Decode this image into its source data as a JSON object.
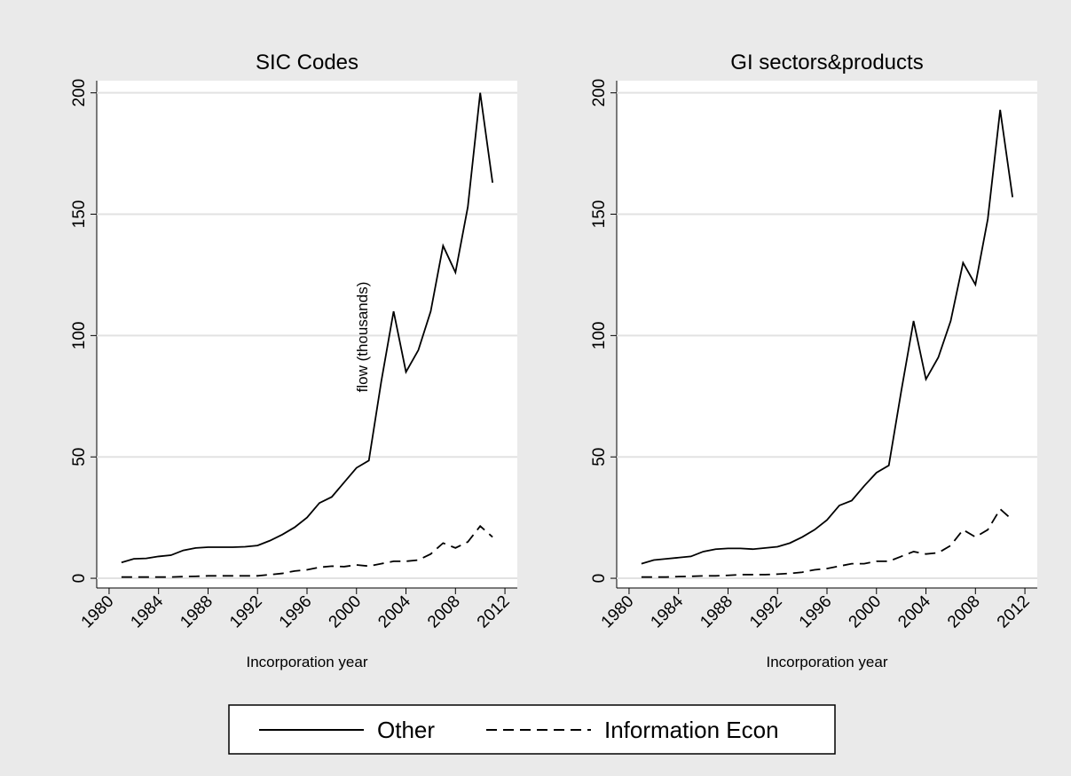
{
  "chart_data": [
    {
      "type": "line",
      "title": "SIC Codes",
      "xlabel": "Incorporation year",
      "ylabel": "flow (thousands)",
      "x": [
        1981,
        1982,
        1983,
        1984,
        1985,
        1986,
        1987,
        1988,
        1989,
        1990,
        1991,
        1992,
        1993,
        1994,
        1995,
        1996,
        1997,
        1998,
        1999,
        2000,
        2001,
        2002,
        2003,
        2004,
        2005,
        2006,
        2007,
        2008,
        2009,
        2010,
        2011
      ],
      "series": [
        {
          "name": "Other",
          "color": "#000000",
          "line_style": "solid",
          "values": [
            6.5,
            8,
            8.2,
            9,
            9.5,
            11.5,
            12.5,
            12.8,
            12.8,
            12.8,
            13,
            13.5,
            15.5,
            18,
            21,
            25,
            31,
            33.5,
            39.5,
            45.5,
            48.5,
            81,
            110,
            85,
            94,
            110,
            137,
            126,
            153,
            200,
            163
          ]
        },
        {
          "name": "Information Econ",
          "color": "#000000",
          "line_style": "dashed",
          "values": [
            0.5,
            0.5,
            0.5,
            0.5,
            0.5,
            0.7,
            0.8,
            1,
            1,
            1,
            1,
            1,
            1.5,
            2,
            3,
            3.5,
            4.5,
            5,
            4.8,
            5.5,
            5,
            6,
            7,
            7,
            7.5,
            10,
            14.5,
            12.5,
            15,
            21.5,
            17
          ]
        }
      ],
      "xlim": [
        1979,
        2013
      ],
      "xticks": [
        1980,
        1984,
        1988,
        1992,
        1996,
        2000,
        2004,
        2008,
        2012
      ],
      "ylim": [
        -4,
        205
      ],
      "yticks": [
        0,
        50,
        100,
        150,
        200
      ],
      "grid": true
    },
    {
      "type": "line",
      "title": "GI sectors&products",
      "xlabel": "Incorporation year",
      "x": [
        1981,
        1982,
        1983,
        1984,
        1985,
        1986,
        1987,
        1988,
        1989,
        1990,
        1991,
        1992,
        1993,
        1994,
        1995,
        1996,
        1997,
        1998,
        1999,
        2000,
        2001,
        2002,
        2003,
        2004,
        2005,
        2006,
        2007,
        2008,
        2009,
        2010,
        2011
      ],
      "series": [
        {
          "name": "Other",
          "color": "#000000",
          "line_style": "solid",
          "values": [
            6,
            7.5,
            8,
            8.5,
            9,
            11,
            12,
            12.3,
            12.3,
            12,
            12.5,
            13,
            14.5,
            17,
            20,
            24,
            30,
            32,
            38,
            43.5,
            46.5,
            77,
            106,
            82,
            91,
            106,
            130,
            121,
            148,
            193,
            157
          ]
        },
        {
          "name": "Information Econ",
          "color": "#000000",
          "line_style": "dashed",
          "values": [
            0.5,
            0.5,
            0.5,
            0.7,
            0.8,
            1,
            1,
            1.2,
            1.5,
            1.5,
            1.5,
            1.7,
            2,
            2.5,
            3.5,
            4,
            5,
            6,
            6,
            7,
            7,
            9,
            11,
            10,
            10.5,
            13.5,
            20,
            17,
            20,
            28.5,
            24
          ]
        }
      ],
      "xlim": [
        1979,
        2013
      ],
      "xticks": [
        1980,
        1984,
        1988,
        1992,
        1996,
        2000,
        2004,
        2008,
        2012
      ],
      "ylim": [
        -4,
        205
      ],
      "yticks": [
        0,
        50,
        100,
        150,
        200
      ],
      "grid": true
    }
  ]
}
